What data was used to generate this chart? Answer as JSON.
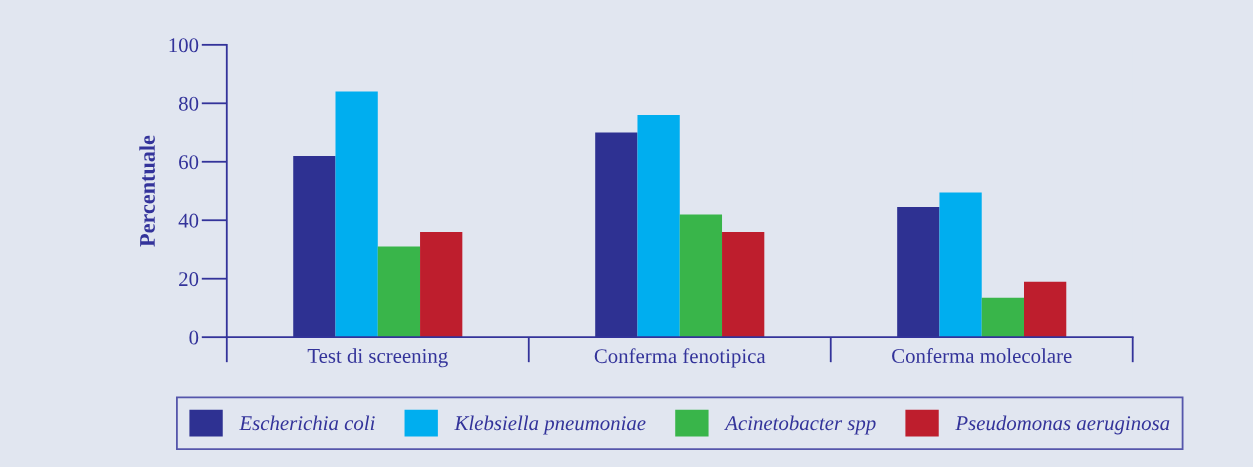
{
  "chart_data": {
    "type": "bar",
    "ylabel": "Percentuale",
    "categories": [
      "Test di screening",
      "Conferma fenotipica",
      "Conferma molecolare"
    ],
    "series": [
      {
        "name": "Escherichia coli",
        "color": "#2e3192",
        "values": [
          62,
          70,
          44.5
        ]
      },
      {
        "name": "Klebsiella pneumoniae",
        "color": "#00aeef",
        "values": [
          84,
          76,
          49.5
        ]
      },
      {
        "name": "Acinetobacter spp",
        "color": "#39b54a",
        "values": [
          31,
          42,
          13.5
        ]
      },
      {
        "name": "Pseudomonas aeruginosa",
        "color": "#be1e2d",
        "values": [
          36,
          36,
          19
        ]
      }
    ],
    "ylim": [
      0,
      100
    ],
    "yticks": [
      0,
      20,
      40,
      60,
      80,
      100
    ],
    "grid": false,
    "legend": "bottom"
  }
}
